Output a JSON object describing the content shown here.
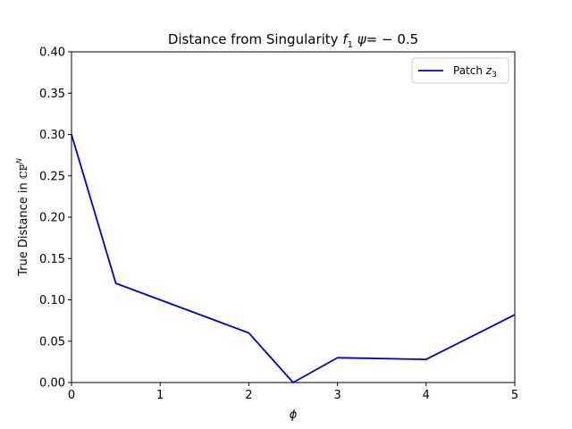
{
  "chart_data": {
    "type": "line",
    "title_main": "Distance from Singularity ",
    "title_f": "f",
    "title_sub": "1",
    "title_psi": " ψ",
    "title_value": "= − 0.5",
    "xlabel": "ϕ",
    "ylabel_text": "True Distance in ",
    "ylabel_symbol": "ℂℙ",
    "ylabel_sup": "N",
    "xlim": [
      0,
      5
    ],
    "ylim": [
      0,
      0.4
    ],
    "xticks": [
      "0",
      "1",
      "2",
      "3",
      "4",
      "5"
    ],
    "yticks": [
      "0.00",
      "0.05",
      "0.10",
      "0.15",
      "0.20",
      "0.25",
      "0.30",
      "0.35",
      "0.40"
    ],
    "grid": false,
    "legend_position": "upper right",
    "series": [
      {
        "name_text": "Patch ",
        "name_var": "z",
        "name_sub": "3",
        "color": "#0000cc",
        "x": [
          0,
          0.5,
          2,
          2.5,
          3,
          4,
          5
        ],
        "y": [
          0.3,
          0.12,
          0.06,
          0.0,
          0.03,
          0.028,
          0.082
        ]
      }
    ]
  }
}
